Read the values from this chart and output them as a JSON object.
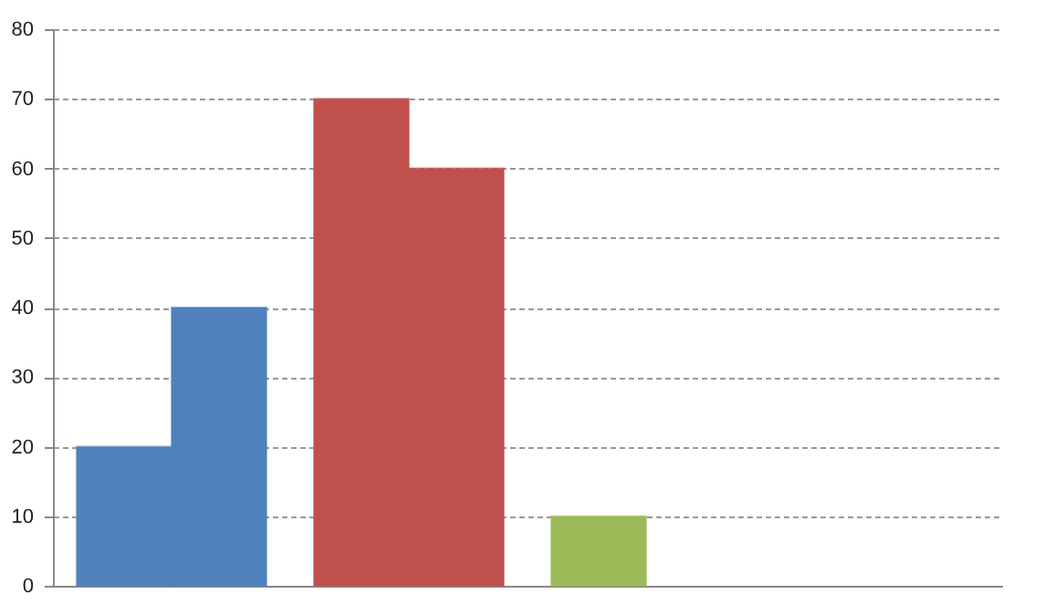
{
  "chart_data": {
    "type": "bar",
    "categories": [
      null,
      null,
      null,
      null
    ],
    "series": [
      {
        "values": [
          20,
          70,
          10,
          null
        ],
        "colors": [
          "#4f81bd",
          "#c0504d",
          "#9bbb59",
          "#4f81bd"
        ]
      },
      {
        "values": [
          40,
          60,
          null,
          null
        ],
        "colors": [
          "#4f81bd",
          "#c0504d",
          "#9bbb59",
          "#4f81bd"
        ]
      }
    ],
    "ylim": [
      0,
      80
    ],
    "yticks": [
      0,
      10,
      20,
      30,
      40,
      50,
      60,
      70,
      80
    ],
    "grid": "y",
    "tick_labels": "y"
  }
}
